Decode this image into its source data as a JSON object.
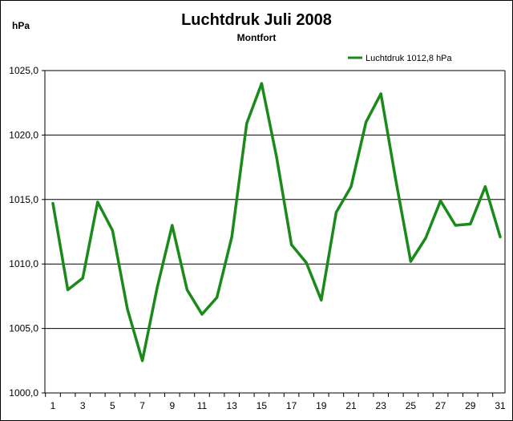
{
  "chart_data": {
    "type": "line",
    "title": "Luchtdruk Juli 2008",
    "subtitle": "Montfort",
    "ylabel": "hPa",
    "xlabel": "",
    "x": [
      1,
      2,
      3,
      4,
      5,
      6,
      7,
      8,
      9,
      10,
      11,
      12,
      13,
      14,
      15,
      16,
      17,
      18,
      19,
      20,
      21,
      22,
      23,
      24,
      25,
      26,
      27,
      28,
      29,
      30,
      31
    ],
    "x_tick_labels": [
      "1",
      "3",
      "5",
      "7",
      "9",
      "11",
      "13",
      "15",
      "17",
      "19",
      "21",
      "23",
      "25",
      "27",
      "29",
      "31"
    ],
    "series": [
      {
        "name": "Luchtdruk 1012,8  hPa",
        "color": "#1a8a1a",
        "values": [
          1014.7,
          1008.0,
          1008.9,
          1014.8,
          1012.6,
          1006.5,
          1002.5,
          1008.2,
          1013.0,
          1008.0,
          1006.1,
          1007.4,
          1012.1,
          1020.9,
          1024.0,
          1018.3,
          1011.5,
          1010.1,
          1007.2,
          1014.0,
          1016.0,
          1021.0,
          1023.2,
          1016.5,
          1010.2,
          1012.0,
          1014.9,
          1013.0,
          1013.1,
          1016.0,
          1012.1
        ]
      }
    ],
    "ylim": [
      1000,
      1025
    ],
    "y_ticks": [
      1000,
      1005,
      1010,
      1015,
      1020,
      1025
    ],
    "y_tick_labels": [
      "1000,0",
      "1005,0",
      "1010,0",
      "1015,0",
      "1020,0",
      "1025,0"
    ],
    "grid": "horizontal",
    "legend_position": "top-right"
  }
}
